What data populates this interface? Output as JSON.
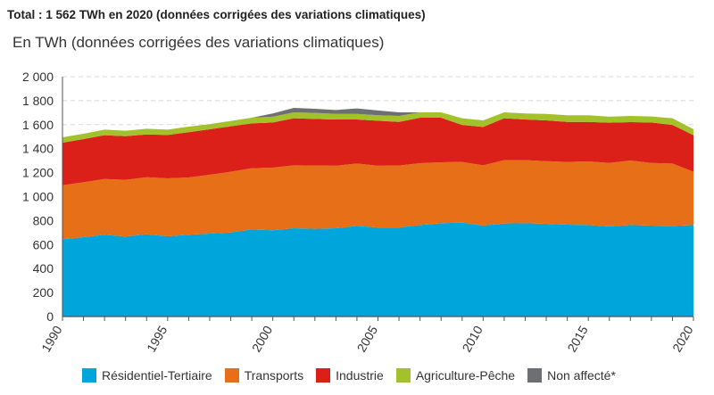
{
  "header": {
    "title": "Total : 1 562 TWh en 2020 (données corrigées des variations climatiques)"
  },
  "chart_data": {
    "type": "area",
    "stacked": true,
    "title": "Total : 1 562 TWh en 2020 (données corrigées des variations climatiques)",
    "ylabel": "En TWh (données corrigées des variations climatiques)",
    "xlabel": "",
    "ylim": [
      0,
      2000
    ],
    "yticks": [
      0,
      200,
      400,
      600,
      800,
      1000,
      1200,
      1400,
      1600,
      1800,
      2000
    ],
    "ytick_labels": [
      "0",
      "200",
      "400",
      "600",
      "800",
      "1 000",
      "1 200",
      "1 400",
      "1 600",
      "1 800",
      "2 000"
    ],
    "xticks": [
      "1990",
      "1995",
      "2000",
      "2005",
      "2010",
      "2015",
      "2020"
    ],
    "grid": "horizontal dashed",
    "legend": "bottom",
    "x": [
      1990,
      1991,
      1992,
      1993,
      1994,
      1995,
      1996,
      1997,
      1998,
      1999,
      2000,
      2001,
      2002,
      2003,
      2004,
      2005,
      2006,
      2007,
      2008,
      2009,
      2010,
      2011,
      2012,
      2013,
      2014,
      2015,
      2016,
      2017,
      2018,
      2019,
      2020
    ],
    "series": [
      {
        "name": "Résidentiel-Tertiaire",
        "color": "#00a5dc",
        "values": [
          644,
          662,
          682,
          667,
          686,
          669,
          682,
          691,
          701,
          726,
          719,
          736,
          731,
          736,
          756,
          743,
          743,
          763,
          778,
          783,
          758,
          776,
          778,
          773,
          766,
          763,
          751,
          763,
          758,
          756,
          763
        ]
      },
      {
        "name": "Transports",
        "color": "#e66f17",
        "values": [
          451,
          458,
          465,
          473,
          476,
          483,
          478,
          491,
          506,
          511,
          523,
          525,
          528,
          521,
          520,
          514,
          516,
          516,
          508,
          506,
          503,
          528,
          526,
          523,
          523,
          531,
          530,
          538,
          523,
          520,
          444
        ]
      },
      {
        "name": "Industrie",
        "color": "#da2019",
        "values": [
          355,
          360,
          365,
          364,
          357,
          362,
          377,
          379,
          379,
          374,
          376,
          392,
          389,
          386,
          367,
          376,
          364,
          379,
          372,
          309,
          320,
          349,
          339,
          340,
          334,
          329,
          335,
          320,
          337,
          322,
          305
        ]
      },
      {
        "name": "Agriculture-Pêche",
        "color": "#a3c12b",
        "values": [
          44,
          44,
          47,
          45,
          47,
          45,
          47,
          43,
          45,
          47,
          48,
          50,
          50,
          47,
          47,
          45,
          50,
          45,
          45,
          55,
          55,
          50,
          50,
          54,
          55,
          55,
          50,
          52,
          50,
          55,
          50
        ]
      },
      {
        "name": "Non affecté*",
        "color": "#6e6f72",
        "values": [
          0,
          0,
          0,
          0,
          0,
          0,
          0,
          0,
          0,
          0,
          27,
          37,
          34,
          32,
          45,
          40,
          30,
          0,
          0,
          0,
          0,
          0,
          0,
          0,
          0,
          0,
          0,
          0,
          0,
          0,
          0
        ]
      }
    ]
  }
}
